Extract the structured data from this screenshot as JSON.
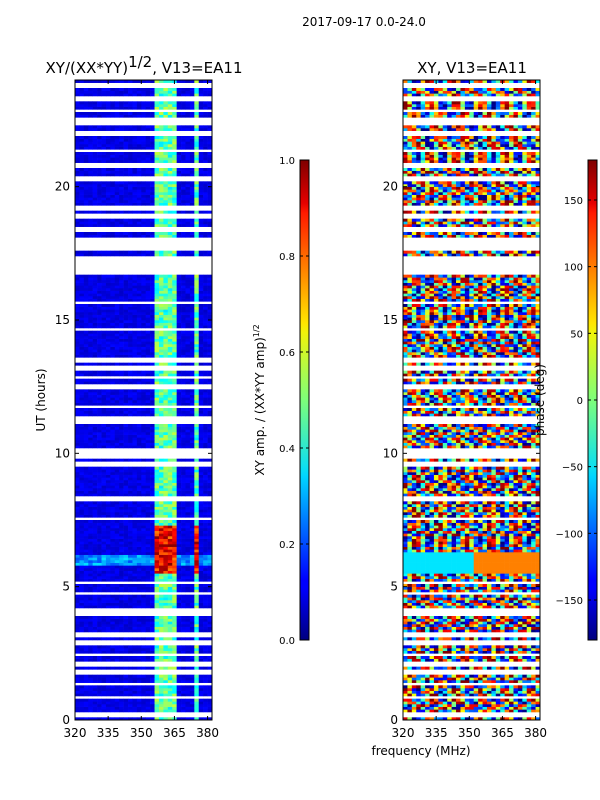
{
  "suptitle": "2017-09-17 0.0-24.0",
  "chart_data": [
    {
      "type": "heatmap",
      "title": "XY/(XX*YY)",
      "title_exponent": "1/2",
      "title_suffix": ", V13=EA11",
      "xlabel": "",
      "ylabel": "UT (hours)",
      "xlim": [
        320,
        382
      ],
      "ylim": [
        0,
        24
      ],
      "xticks": [
        320,
        335,
        350,
        365,
        380
      ],
      "yticks": [
        0,
        5,
        10,
        15,
        20
      ],
      "grid": false,
      "colorbar": {
        "label": "XY amp. / (XX*YY amp)",
        "label_exponent": "1/2",
        "range": [
          0.0,
          1.0
        ],
        "ticks": [
          "0.0",
          "0.2",
          "0.4",
          "0.6",
          "0.8",
          "1.0"
        ],
        "colormap": "jet"
      }
    },
    {
      "type": "heatmap",
      "title": "XY, V13=EA11",
      "xlabel": "frequency (MHz)",
      "ylabel": "",
      "xlim": [
        320,
        382
      ],
      "ylim": [
        0,
        24
      ],
      "xticks": [
        320,
        335,
        350,
        365,
        380
      ],
      "yticks": [
        0,
        5,
        10,
        15,
        20
      ],
      "grid": false,
      "colorbar": {
        "label": "phase (deg)",
        "range": [
          -180,
          180
        ],
        "ticks": [
          "−150",
          "−100",
          "−50",
          "0",
          "50",
          "100",
          "150"
        ],
        "colormap": "jet"
      }
    }
  ],
  "flagged_time_bands_hours": [
    [
      0.1,
      0.35
    ],
    [
      0.8,
      0.95
    ],
    [
      1.3,
      1.4
    ],
    [
      1.75,
      1.85
    ],
    [
      2.05,
      2.15
    ],
    [
      2.45,
      2.55
    ],
    [
      2.85,
      2.95
    ],
    [
      3.15,
      3.25
    ],
    [
      3.95,
      4.15
    ],
    [
      4.7,
      4.8
    ],
    [
      5.1,
      5.2
    ],
    [
      7.5,
      7.6
    ],
    [
      8.25,
      8.35
    ],
    [
      9.55,
      9.65
    ],
    [
      9.85,
      10.15
    ],
    [
      11.15,
      11.4
    ],
    [
      11.75,
      11.85
    ],
    [
      12.45,
      12.55
    ],
    [
      12.85,
      12.95
    ],
    [
      13.1,
      13.25
    ],
    [
      13.45,
      13.55
    ],
    [
      14.6,
      14.7
    ],
    [
      15.6,
      15.65
    ],
    [
      16.75,
      17.35
    ],
    [
      17.65,
      18.05
    ],
    [
      18.35,
      18.45
    ],
    [
      18.85,
      18.95
    ],
    [
      19.15,
      19.25
    ],
    [
      20.25,
      20.35
    ],
    [
      20.75,
      20.85
    ],
    [
      21.35,
      21.45
    ],
    [
      21.95,
      22.05
    ],
    [
      22.35,
      22.55
    ],
    [
      22.85,
      22.95
    ],
    [
      23.25,
      23.45
    ],
    [
      23.75,
      23.85
    ]
  ],
  "active_channels_MHz": [
    [
      356,
      358
    ],
    [
      359,
      360
    ],
    [
      361,
      362
    ],
    [
      363,
      364
    ],
    [
      365,
      366
    ],
    [
      368,
      369
    ],
    [
      372,
      373
    ],
    [
      375,
      376
    ],
    [
      378,
      379
    ],
    [
      380,
      381
    ]
  ],
  "rfi_event_hours": [
    5.5,
    7.3
  ]
}
